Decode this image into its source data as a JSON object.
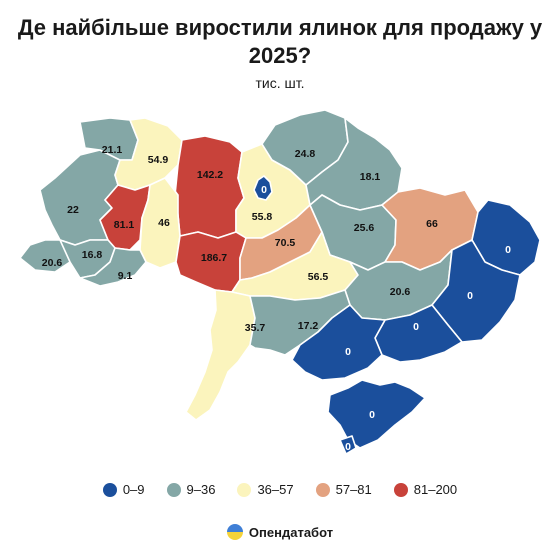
{
  "title": "Де найбільше виростили ялинок для продажу у 2025?",
  "unit": "тис. шт.",
  "colors": {
    "0-9": "#1b4f9c",
    "9-36": "#84a7a6",
    "36-57": "#fbf4bd",
    "57-81": "#e3a280",
    "81-200": "#c8423a"
  },
  "legend": [
    {
      "label": "0–9",
      "color": "#1b4f9c"
    },
    {
      "label": "9–36",
      "color": "#84a7a6"
    },
    {
      "label": "36–57",
      "color": "#fbf4bd"
    },
    {
      "label": "57–81",
      "color": "#e3a280"
    },
    {
      "label": "81–200",
      "color": "#c8423a"
    }
  ],
  "regions": [
    {
      "id": "volyn",
      "value": "21.1",
      "bin": "9-36"
    },
    {
      "id": "rivne",
      "value": "54.9",
      "bin": "36-57"
    },
    {
      "id": "zhytomyr",
      "value": "142.2",
      "bin": "81-200"
    },
    {
      "id": "kyiv-oblast",
      "value": "55.8",
      "bin": "36-57"
    },
    {
      "id": "kyiv-city",
      "value": "0",
      "bin": "0-9"
    },
    {
      "id": "chernihiv",
      "value": "24.8",
      "bin": "9-36"
    },
    {
      "id": "sumy",
      "value": "18.1",
      "bin": "9-36"
    },
    {
      "id": "lviv",
      "value": "22",
      "bin": "9-36"
    },
    {
      "id": "ternopil",
      "value": "81.1",
      "bin": "81-200"
    },
    {
      "id": "khmelnytskyi",
      "value": "46",
      "bin": "36-57"
    },
    {
      "id": "vinnytsia",
      "value": "186.7",
      "bin": "81-200"
    },
    {
      "id": "cherkasy",
      "value": "70.5",
      "bin": "57-81"
    },
    {
      "id": "poltava",
      "value": "25.6",
      "bin": "9-36"
    },
    {
      "id": "kharkiv",
      "value": "66",
      "bin": "57-81"
    },
    {
      "id": "zakarpattia",
      "value": "20.6",
      "bin": "9-36"
    },
    {
      "id": "ivano-frankivsk",
      "value": "16.8",
      "bin": "9-36"
    },
    {
      "id": "chernivtsi",
      "value": "9.1",
      "bin": "9-36"
    },
    {
      "id": "kirovohrad",
      "value": "56.5",
      "bin": "36-57"
    },
    {
      "id": "dnipropetrovsk",
      "value": "20.6",
      "bin": "9-36"
    },
    {
      "id": "luhansk",
      "value": "0",
      "bin": "0-9"
    },
    {
      "id": "donetsk",
      "value": "0",
      "bin": "0-9"
    },
    {
      "id": "zaporizhzhia",
      "value": "0",
      "bin": "0-9"
    },
    {
      "id": "odesa",
      "value": "35.7",
      "bin": "36-57"
    },
    {
      "id": "mykolaiv",
      "value": "17.2",
      "bin": "9-36"
    },
    {
      "id": "kherson",
      "value": "0",
      "bin": "0-9"
    },
    {
      "id": "crimea",
      "value": "0",
      "bin": "0-9"
    },
    {
      "id": "sevastopol",
      "value": "0",
      "bin": "0-9"
    }
  ],
  "brand": "Опендатабот"
}
